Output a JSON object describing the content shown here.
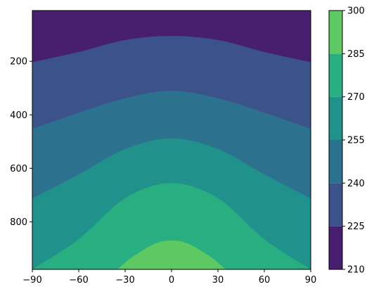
{
  "chart_data": {
    "type": "contour",
    "xlim": [
      -90,
      90
    ],
    "ylim": [
      978,
      10
    ],
    "y_inverted": true,
    "x_ticks": [
      -90,
      -60,
      -30,
      0,
      30,
      60,
      90
    ],
    "x_tick_labels": [
      "−90",
      "−60",
      "−30",
      "0",
      "30",
      "60",
      "90"
    ],
    "y_ticks": [
      200,
      400,
      600,
      800
    ],
    "y_tick_labels": [
      "200",
      "400",
      "600",
      "800"
    ],
    "levels": [
      210,
      225,
      240,
      255,
      270,
      285,
      300
    ],
    "colorbar_tick_labels": [
      "210",
      "225",
      "240",
      "255",
      "270",
      "285",
      "300"
    ],
    "level_colors": [
      "#481f70",
      "#3b528b",
      "#2c728e",
      "#21918c",
      "#28ae80",
      "#5ec962",
      "#d0e11c"
    ],
    "colorbar_position": "right",
    "grid": false,
    "boundaries": [
      {
        "between": [
          210,
          225
        ],
        "x": [
          -90,
          -60,
          -30,
          0,
          30,
          60,
          90
        ],
        "y": [
          203,
          165,
          120,
          105,
          120,
          165,
          203
        ]
      },
      {
        "between": [
          225,
          240
        ],
        "x": [
          -90,
          -60,
          -30,
          0,
          30,
          60,
          90
        ],
        "y": [
          452,
          392,
          338,
          310,
          338,
          392,
          452
        ]
      },
      {
        "between": [
          240,
          255
        ],
        "x": [
          -90,
          -60,
          -30,
          0,
          30,
          60,
          90
        ],
        "y": [
          713,
          623,
          528,
          488,
          528,
          623,
          713
        ]
      },
      {
        "between": [
          255,
          270
        ],
        "x": [
          -90,
          -60,
          -30,
          0,
          30,
          60,
          90
        ],
        "y": [
          978,
          865,
          712,
          655,
          712,
          865,
          978
        ]
      },
      {
        "between": [
          270,
          285
        ],
        "x": [
          -35,
          -25,
          -10,
          0,
          10,
          25,
          35
        ],
        "y": [
          978,
          930,
          880,
          870,
          880,
          930,
          978
        ]
      }
    ]
  }
}
